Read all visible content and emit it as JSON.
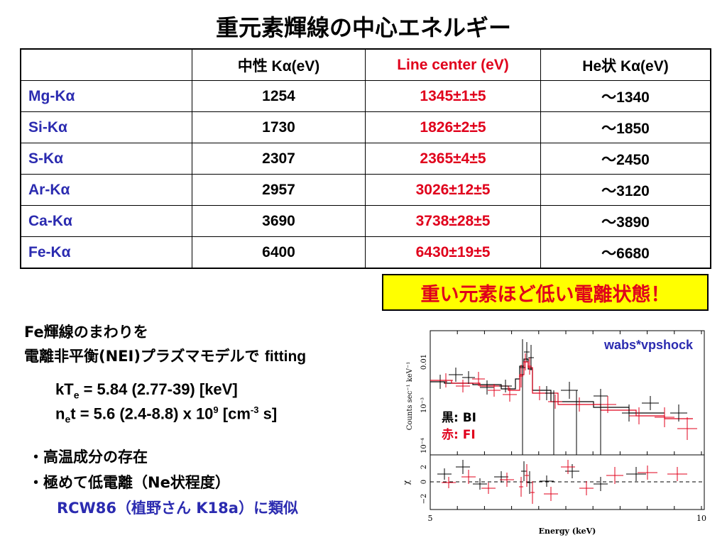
{
  "title": "重元素輝線の中心エネルギー",
  "table": {
    "headers": [
      "",
      "中性 Kα(eV)",
      "Line center (eV)",
      "He状 Kα(eV)"
    ],
    "rows": [
      {
        "line": "Mg-Kα",
        "neutral": "1254",
        "center": "1345±1±5",
        "he": "～1340"
      },
      {
        "line": "Si-Kα",
        "neutral": "1730",
        "center": "1826±2±5",
        "he": "～1850"
      },
      {
        "line": "S-Kα",
        "neutral": "2307",
        "center": "2365±4±5",
        "he": "～2450"
      },
      {
        "line": "Ar-Kα",
        "neutral": "2957",
        "center": "3026±12±5",
        "he": "～3120"
      },
      {
        "line": "Ca-Kα",
        "neutral": "3690",
        "center": "3738±28±5",
        "he": "～3890"
      },
      {
        "line": "Fe-Kα",
        "neutral": "6400",
        "center": "6430±19±5",
        "he": "～6680"
      }
    ]
  },
  "callout": "重い元素ほど低い電離状態！",
  "fit": {
    "line1": "Fe輝線のまわりを",
    "line2_pre": "電離非平衡(NEI)プラズマモデルで",
    "line2_post": "fitting",
    "kt_prefix": "kT",
    "kt_sub": "e",
    "kt_rest": " = 5.84 (2.77-39) [keV]",
    "nt_prefix": "n",
    "nt_sub": "e",
    "nt_mid": "t = 5.6 (2.4-8.8) x 10",
    "nt_exp": "9",
    "nt_unit_pre": " [cm",
    "nt_unit_exp": "-3",
    "nt_unit_post": " s]"
  },
  "bullets": [
    "・高温成分の存在",
    "・極めて低電離（Ne状程度）"
  ],
  "reference": "RCW86（植野さん K18a）に類似",
  "plot": {
    "model_label": "wabs*vpshock",
    "legend_black": "黒: BI",
    "legend_red": "赤: FI",
    "ylabel_top": "Counts sec⁻¹ keV⁻¹",
    "ylabel_bottom": "χ",
    "ytick_top": [
      "0.01",
      "10⁻³",
      "10⁻⁴"
    ],
    "ytick_bottom": [
      "2",
      "0",
      "−2"
    ],
    "xticks": [
      "5",
      "10"
    ],
    "xlabel": "Energy (keV)",
    "colors": {
      "bi": "#000000",
      "fi": "#e0001b"
    }
  }
}
